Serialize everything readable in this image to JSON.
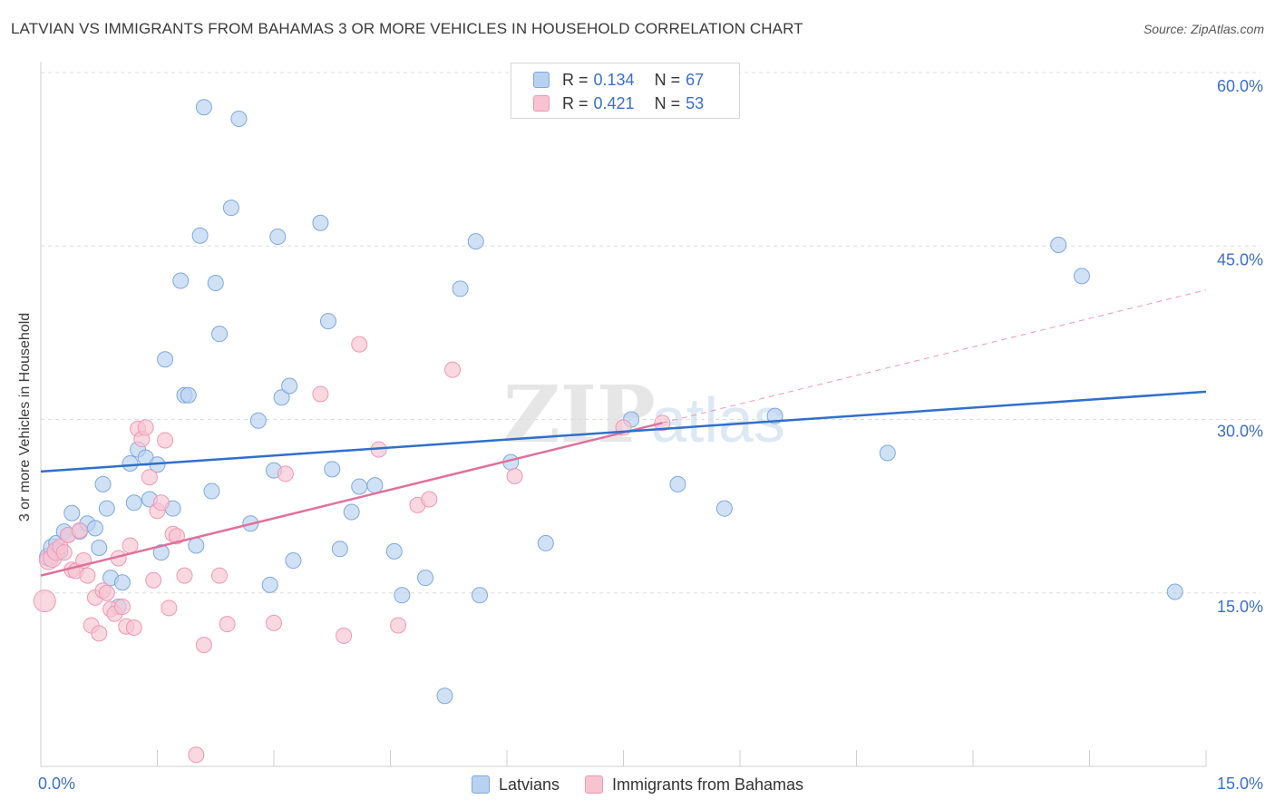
{
  "title": "LATVIAN VS IMMIGRANTS FROM BAHAMAS 3 OR MORE VEHICLES IN HOUSEHOLD CORRELATION CHART",
  "source": "Source: ZipAtlas.com",
  "colors": {
    "blue_fill": "#b9d1f0",
    "blue_stroke": "#7ea8dc",
    "blue_line": "#2f6fcc",
    "pink_fill": "#f7c3d3",
    "pink_stroke": "#ee98b3",
    "pink_line": "#e0709a",
    "tick_label": "#3a6fc9",
    "grid": "#dcdcdc"
  },
  "legend": {
    "rows": [
      {
        "r_label": "R =",
        "r_value": "0.134",
        "n_label": "N =",
        "n_value": "67"
      },
      {
        "r_label": "R =",
        "r_value": "0.421",
        "n_label": "N =",
        "n_value": "53"
      }
    ]
  },
  "watermark": {
    "zip": "ZIP",
    "atlas": "atlas"
  },
  "chart_data": {
    "type": "scatter",
    "ylabel": "3 or more Vehicles in Household",
    "xlim": [
      0,
      15
    ],
    "ylim": [
      0,
      60
    ],
    "x_tick_labels": [
      "0.0%",
      "15.0%"
    ],
    "y_ticks": [
      15,
      30,
      45,
      60
    ],
    "y_tick_labels": [
      "15.0%",
      "30.0%",
      "45.0%",
      "60.0%"
    ],
    "grid": "horizontal dashed",
    "legend_position": "top-center",
    "series": [
      {
        "name": "Latvians",
        "trend": {
          "x": [
            0,
            15
          ],
          "y": [
            25.5,
            32.4
          ]
        },
        "points": [
          [
            0.1,
            18.1
          ],
          [
            0.15,
            18.9
          ],
          [
            0.2,
            19.3
          ],
          [
            0.25,
            18.6
          ],
          [
            0.3,
            20.3
          ],
          [
            0.35,
            20.0
          ],
          [
            0.4,
            21.9
          ],
          [
            0.5,
            20.3
          ],
          [
            0.6,
            21.0
          ],
          [
            0.7,
            20.6
          ],
          [
            0.75,
            18.9
          ],
          [
            0.8,
            24.4
          ],
          [
            0.85,
            22.3
          ],
          [
            0.9,
            16.3
          ],
          [
            1.0,
            13.8
          ],
          [
            1.05,
            15.9
          ],
          [
            1.15,
            26.2
          ],
          [
            1.2,
            22.8
          ],
          [
            1.25,
            27.4
          ],
          [
            1.35,
            26.7
          ],
          [
            1.4,
            23.1
          ],
          [
            1.5,
            26.1
          ],
          [
            1.55,
            18.5
          ],
          [
            1.6,
            35.2
          ],
          [
            1.7,
            22.3
          ],
          [
            1.8,
            42.0
          ],
          [
            1.85,
            32.1
          ],
          [
            1.9,
            32.1
          ],
          [
            2.0,
            19.1
          ],
          [
            2.05,
            45.9
          ],
          [
            2.1,
            57.0
          ],
          [
            2.2,
            23.8
          ],
          [
            2.25,
            41.8
          ],
          [
            2.3,
            37.4
          ],
          [
            2.45,
            48.3
          ],
          [
            2.55,
            56.0
          ],
          [
            2.7,
            21.0
          ],
          [
            2.8,
            29.9
          ],
          [
            2.95,
            15.7
          ],
          [
            3.0,
            25.6
          ],
          [
            3.05,
            45.8
          ],
          [
            3.1,
            31.9
          ],
          [
            3.2,
            32.9
          ],
          [
            3.25,
            17.8
          ],
          [
            3.6,
            47.0
          ],
          [
            3.7,
            38.5
          ],
          [
            3.75,
            25.7
          ],
          [
            3.85,
            18.8
          ],
          [
            4.0,
            22.0
          ],
          [
            4.1,
            24.2
          ],
          [
            4.3,
            24.3
          ],
          [
            4.55,
            18.6
          ],
          [
            4.65,
            14.8
          ],
          [
            4.95,
            16.3
          ],
          [
            5.2,
            6.1
          ],
          [
            5.4,
            41.3
          ],
          [
            5.6,
            45.4
          ],
          [
            5.65,
            14.8
          ],
          [
            6.05,
            26.3
          ],
          [
            6.5,
            19.3
          ],
          [
            7.6,
            30.0
          ],
          [
            8.2,
            24.4
          ],
          [
            8.8,
            22.3
          ],
          [
            9.45,
            30.3
          ],
          [
            10.9,
            27.1
          ],
          [
            13.1,
            45.1
          ],
          [
            13.4,
            42.4
          ],
          [
            14.6,
            15.1
          ]
        ]
      },
      {
        "name": "Immigrants from Bahamas",
        "trend": {
          "x": [
            0,
            8
          ],
          "y": [
            16.5,
            29.7
          ]
        },
        "trend_extension": {
          "x": [
            8,
            15
          ],
          "y": [
            29.7,
            41.2
          ]
        },
        "points": [
          [
            0.05,
            14.3
          ],
          [
            0.1,
            17.8
          ],
          [
            0.15,
            18.0
          ],
          [
            0.2,
            18.6
          ],
          [
            0.25,
            19.0
          ],
          [
            0.3,
            18.5
          ],
          [
            0.35,
            20.0
          ],
          [
            0.4,
            17.0
          ],
          [
            0.45,
            16.9
          ],
          [
            0.5,
            20.4
          ],
          [
            0.55,
            17.8
          ],
          [
            0.6,
            16.5
          ],
          [
            0.65,
            12.2
          ],
          [
            0.7,
            14.6
          ],
          [
            0.75,
            11.5
          ],
          [
            0.8,
            15.2
          ],
          [
            0.85,
            15.0
          ],
          [
            0.9,
            13.6
          ],
          [
            0.95,
            13.2
          ],
          [
            1.0,
            18.0
          ],
          [
            1.05,
            13.8
          ],
          [
            1.1,
            12.1
          ],
          [
            1.15,
            19.1
          ],
          [
            1.2,
            12.0
          ],
          [
            1.25,
            29.2
          ],
          [
            1.3,
            28.3
          ],
          [
            1.35,
            29.3
          ],
          [
            1.4,
            25.0
          ],
          [
            1.45,
            16.1
          ],
          [
            1.5,
            22.1
          ],
          [
            1.55,
            22.8
          ],
          [
            1.6,
            28.2
          ],
          [
            1.65,
            13.7
          ],
          [
            1.7,
            20.1
          ],
          [
            1.75,
            19.9
          ],
          [
            1.85,
            16.5
          ],
          [
            2.0,
            1.0
          ],
          [
            2.1,
            10.5
          ],
          [
            2.3,
            16.5
          ],
          [
            2.4,
            12.3
          ],
          [
            3.0,
            12.4
          ],
          [
            3.15,
            25.3
          ],
          [
            3.6,
            32.2
          ],
          [
            3.9,
            11.3
          ],
          [
            4.1,
            36.5
          ],
          [
            4.35,
            27.4
          ],
          [
            4.6,
            12.2
          ],
          [
            4.85,
            22.6
          ],
          [
            5.0,
            23.1
          ],
          [
            5.3,
            34.3
          ],
          [
            6.1,
            25.1
          ],
          [
            7.5,
            29.3
          ],
          [
            8.0,
            29.7
          ]
        ]
      }
    ]
  }
}
